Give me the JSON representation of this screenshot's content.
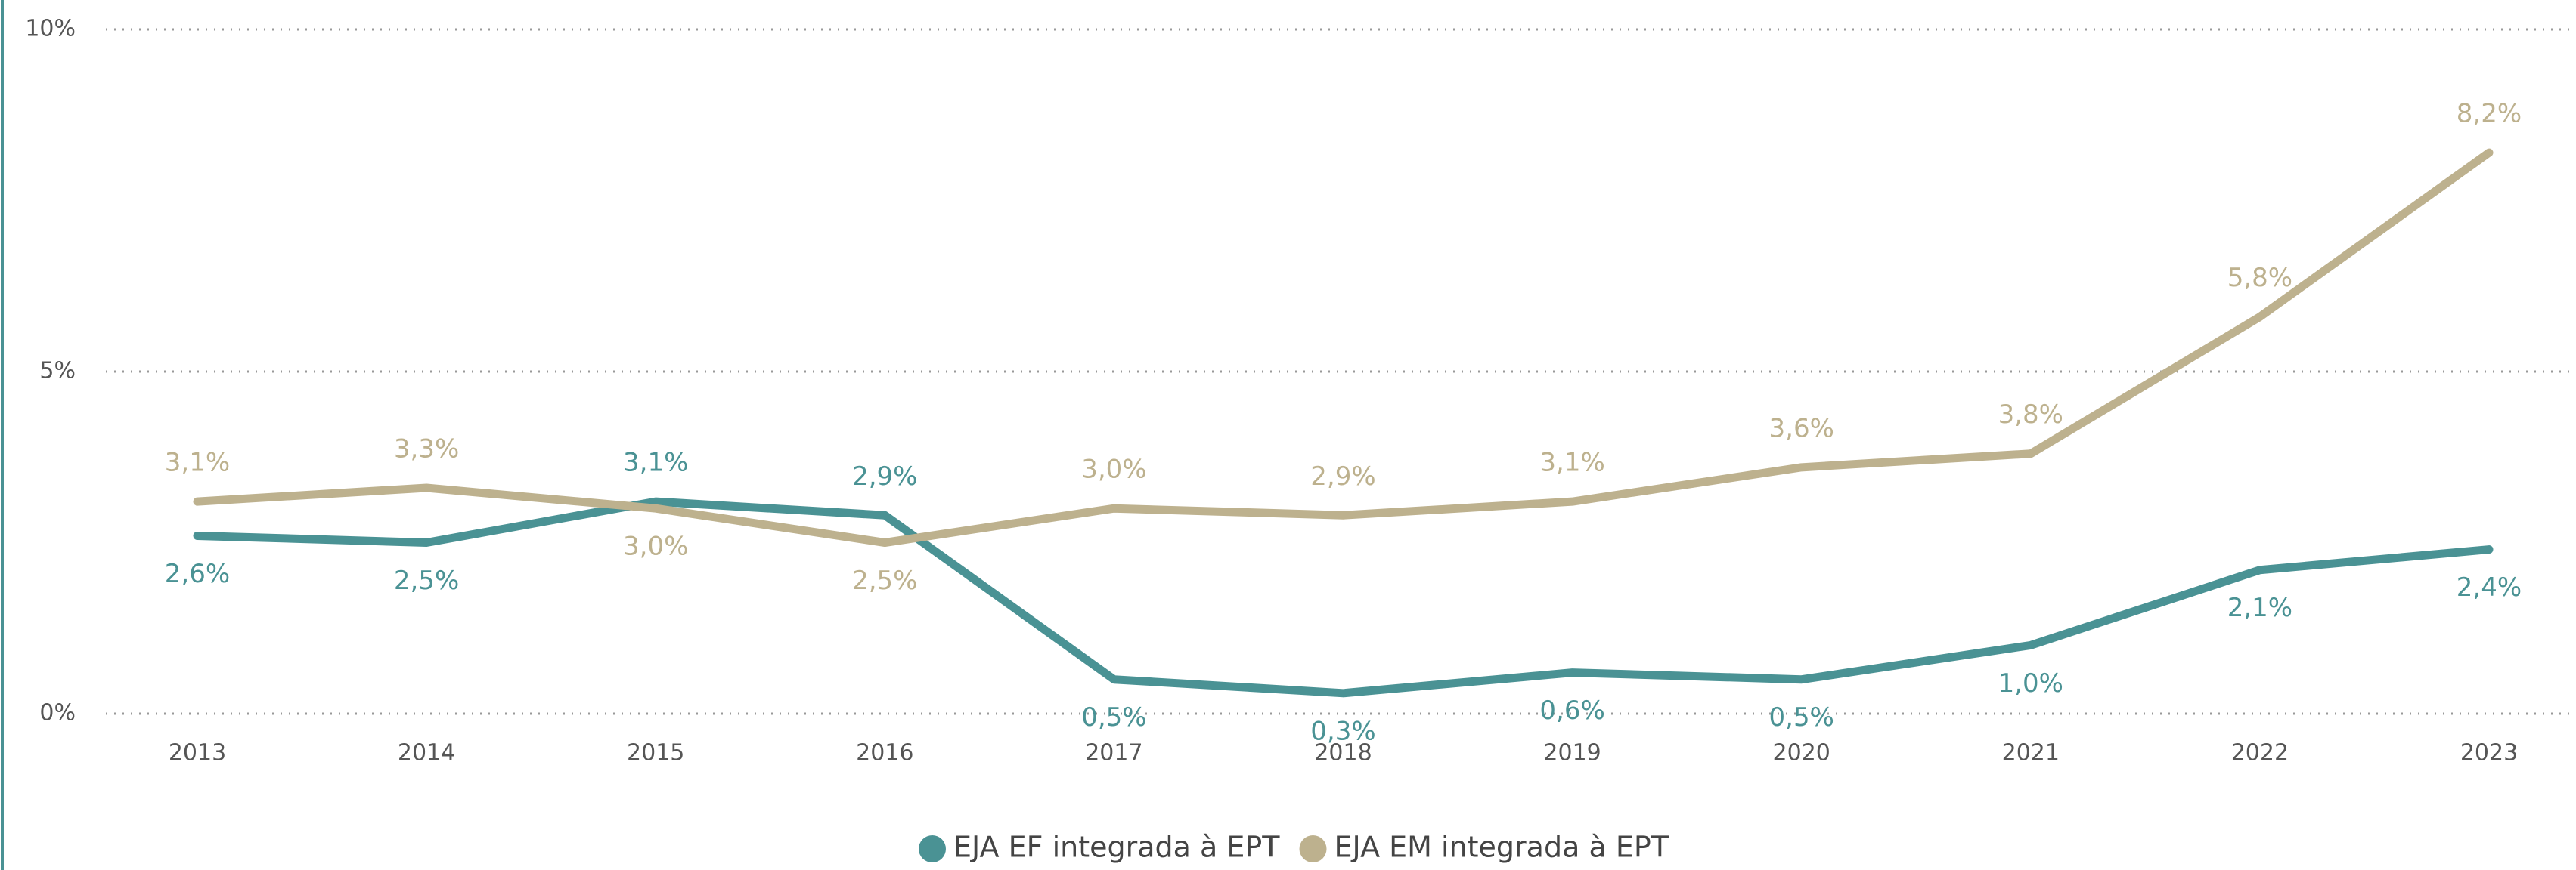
{
  "chart_data": {
    "type": "line",
    "categories": [
      "2013",
      "2014",
      "2015",
      "2016",
      "2017",
      "2018",
      "2019",
      "2020",
      "2021",
      "2022",
      "2023"
    ],
    "series": [
      {
        "name": "EJA EF integrada à EPT",
        "color": "#4a9294",
        "values": [
          2.6,
          2.5,
          3.1,
          2.9,
          0.5,
          0.3,
          0.6,
          0.5,
          1.0,
          2.1,
          2.4
        ],
        "value_labels": [
          "2,6%",
          "2,5%",
          "3,1%",
          "2,9%",
          "0,5%",
          "0,3%",
          "0,6%",
          "0,5%",
          "1,0%",
          "2,1%",
          "2,4%"
        ]
      },
      {
        "name": "EJA EM integrada à EPT",
        "color": "#bdb18e",
        "values": [
          3.1,
          3.3,
          3.0,
          2.5,
          3.0,
          2.9,
          3.1,
          3.6,
          3.8,
          5.8,
          8.2
        ],
        "value_labels": [
          "3,1%",
          "3,3%",
          "3,0%",
          "2,5%",
          "3,0%",
          "2,9%",
          "3,1%",
          "3,6%",
          "3,8%",
          "5,8%",
          "8,2%"
        ]
      }
    ],
    "ylim": [
      0,
      10
    ],
    "yticks": [
      {
        "value": 0,
        "label": "0%"
      },
      {
        "value": 5,
        "label": "5%"
      },
      {
        "value": 10,
        "label": "10%"
      }
    ],
    "grid": true
  }
}
